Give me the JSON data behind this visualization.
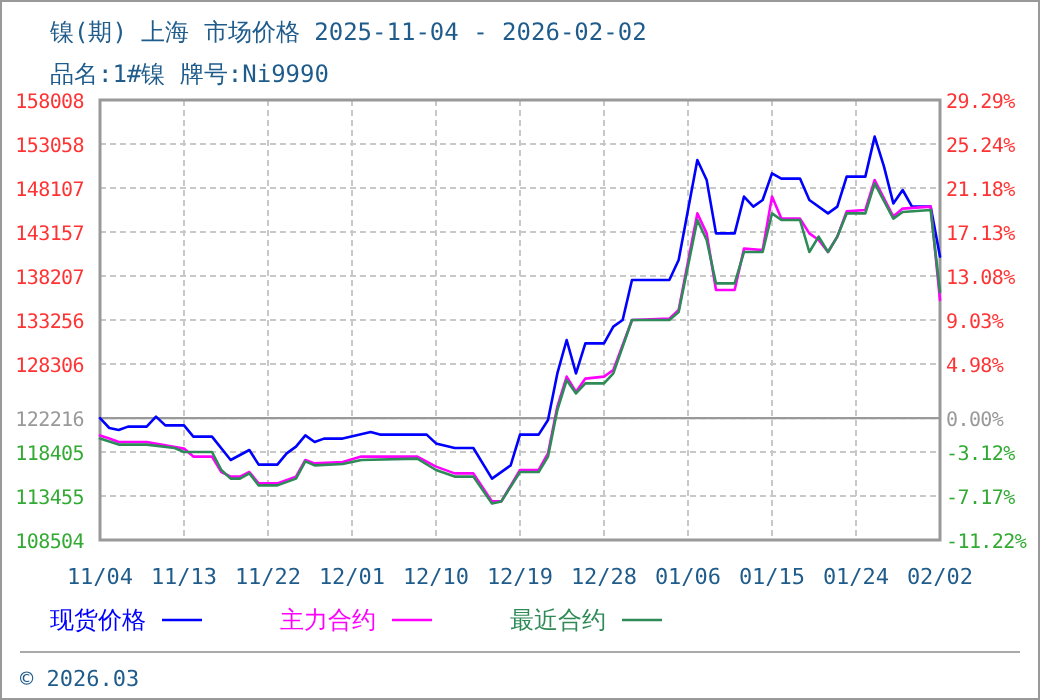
{
  "chart_data": {
    "type": "line",
    "title": "镍(期) 上海 市场价格 2025-11-04 - 2026-02-02",
    "subtitle": "品名:1#镍 牌号:Ni9990",
    "annotations": [
      "© 2026.03"
    ],
    "xlim": [
      "2025-11-04",
      "2026-02-02"
    ],
    "xticks": [
      {
        "value": "2025-11-04",
        "label": "11/04"
      },
      {
        "value": "2025-11-13",
        "label": "11/13"
      },
      {
        "value": "2025-11-22",
        "label": "11/22"
      },
      {
        "value": "2025-12-01",
        "label": "12/01"
      },
      {
        "value": "2025-12-10",
        "label": "12/10"
      },
      {
        "value": "2025-12-19",
        "label": "12/19"
      },
      {
        "value": "2025-12-28",
        "label": "12/28"
      },
      {
        "value": "2026-01-06",
        "label": "01/06"
      },
      {
        "value": "2026-01-15",
        "label": "01/15"
      },
      {
        "value": "2026-01-24",
        "label": "01/24"
      },
      {
        "value": "2026-02-02",
        "label": "02/02"
      }
    ],
    "ylim": [
      108504,
      158008
    ],
    "yticks": [
      158008,
      153058,
      148107,
      143157,
      138207,
      133256,
      128306,
      122216,
      118405,
      113455,
      108504
    ],
    "y2lim": [
      -11.22,
      29.29
    ],
    "y2ticks": [
      {
        "value": 29.29,
        "label": "29.29%"
      },
      {
        "value": 25.24,
        "label": "25.24%"
      },
      {
        "value": 21.18,
        "label": "21.18%"
      },
      {
        "value": 17.13,
        "label": "17.13%"
      },
      {
        "value": 13.08,
        "label": "13.08%"
      },
      {
        "value": 9.03,
        "label": "9.03%"
      },
      {
        "value": 4.98,
        "label": "4.98%"
      },
      {
        "value": 0,
        "label": "0.00%"
      },
      {
        "value": -3.12,
        "label": "-3.12%"
      },
      {
        "value": -7.17,
        "label": "-7.17%"
      },
      {
        "value": -11.22,
        "label": "-11.22%"
      }
    ],
    "ref_lines": [
      {
        "axis": "y",
        "value": 122216,
        "color": "#999999",
        "line_style": "solid"
      }
    ],
    "grid": true,
    "legend": "bottom",
    "marker": "none",
    "line_style": "solid",
    "series": [
      {
        "name": "现货价格",
        "color": "#0000ff",
        "x": [
          "2025-11-04",
          "2025-11-05",
          "2025-11-06",
          "2025-11-07",
          "2025-11-09",
          "2025-11-10",
          "2025-11-11",
          "2025-11-13",
          "2025-11-14",
          "2025-11-16",
          "2025-11-18",
          "2025-11-20",
          "2025-11-21",
          "2025-11-23",
          "2025-11-24",
          "2025-11-25",
          "2025-11-26",
          "2025-11-27",
          "2025-11-28",
          "2025-11-30",
          "2025-12-03",
          "2025-12-04",
          "2025-12-09",
          "2025-12-10",
          "2025-12-12",
          "2025-12-14",
          "2025-12-16",
          "2025-12-18",
          "2025-12-19",
          "2025-12-21",
          "2025-12-22",
          "2025-12-23",
          "2025-12-24",
          "2025-12-25",
          "2025-12-26",
          "2025-12-28",
          "2025-12-29",
          "2025-12-30",
          "2025-12-31",
          "2026-01-04",
          "2026-01-05",
          "2026-01-07",
          "2026-01-08",
          "2026-01-09",
          "2026-01-11",
          "2026-01-12",
          "2026-01-13",
          "2026-01-14",
          "2026-01-15",
          "2026-01-16",
          "2026-01-18",
          "2026-01-19",
          "2026-01-21",
          "2026-01-22",
          "2026-01-23",
          "2026-01-25",
          "2026-01-26",
          "2026-01-27",
          "2026-01-28",
          "2026-01-29",
          "2026-01-30",
          "2026-02-01",
          "2026-02-02"
        ],
        "values": [
          122216,
          121105,
          120880,
          121262,
          121262,
          122387,
          121397,
          121397,
          120137,
          120137,
          117504,
          118629,
          116987,
          116987,
          118247,
          119012,
          120272,
          119530,
          119912,
          119912,
          120655,
          120362,
          120362,
          119372,
          118855,
          118855,
          115412,
          116897,
          120362,
          120362,
          122005,
          127248,
          131006,
          127248,
          130623,
          130623,
          132513,
          133256,
          137756,
          137756,
          140006,
          151257,
          149007,
          142999,
          142999,
          147140,
          146014,
          146757,
          149750,
          149165,
          149165,
          146757,
          145249,
          146014,
          149390,
          149390,
          153890,
          150515,
          146375,
          147882,
          146014,
          146014,
          140389
        ]
      },
      {
        "name": "主力合约",
        "color": "#ff00ff",
        "x": [
          "2025-11-04",
          "2025-11-05",
          "2025-11-06",
          "2025-11-09",
          "2025-11-11",
          "2025-11-13",
          "2025-11-14",
          "2025-11-16",
          "2025-11-17",
          "2025-11-18",
          "2025-11-19",
          "2025-11-20",
          "2025-11-21",
          "2025-11-23",
          "2025-11-25",
          "2025-11-26",
          "2025-11-27",
          "2025-11-30",
          "2025-12-02",
          "2025-12-08",
          "2025-12-10",
          "2025-12-12",
          "2025-12-14",
          "2025-12-16",
          "2025-12-17",
          "2025-12-19",
          "2025-12-21",
          "2025-12-22",
          "2025-12-23",
          "2025-12-24",
          "2025-12-25",
          "2025-12-26",
          "2025-12-28",
          "2025-12-29",
          "2025-12-31",
          "2026-01-04",
          "2026-01-05",
          "2026-01-07",
          "2026-01-08",
          "2026-01-09",
          "2026-01-11",
          "2026-01-12",
          "2026-01-14",
          "2026-01-15",
          "2026-01-16",
          "2026-01-18",
          "2026-01-19",
          "2026-01-20",
          "2026-01-21",
          "2026-01-22",
          "2026-01-23",
          "2026-01-25",
          "2026-01-26",
          "2026-01-28",
          "2026-01-29",
          "2026-02-01",
          "2026-02-02"
        ],
        "values": [
          120272,
          119912,
          119530,
          119530,
          119147,
          118787,
          117887,
          117887,
          116154,
          115637,
          115637,
          116154,
          114872,
          114872,
          115637,
          117504,
          117122,
          117279,
          117887,
          117887,
          116762,
          115997,
          115997,
          112846,
          112846,
          116379,
          116379,
          118247,
          123512,
          126888,
          125155,
          126663,
          126888,
          127630,
          133256,
          133413,
          134381,
          145249,
          142999,
          136631,
          136631,
          141289,
          141131,
          147140,
          144664,
          144664,
          142999,
          142257,
          140906,
          142639,
          145474,
          145632,
          149007,
          144889,
          145789,
          146014,
          135506
        ]
      },
      {
        "name": "最近合约",
        "color": "#2e8b57",
        "x": [
          "2025-11-04",
          "2025-11-06",
          "2025-11-09",
          "2025-11-12",
          "2025-11-13",
          "2025-11-16",
          "2025-11-17",
          "2025-11-18",
          "2025-11-19",
          "2025-11-20",
          "2025-11-21",
          "2025-11-23",
          "2025-11-25",
          "2025-11-26",
          "2025-11-27",
          "2025-11-30",
          "2025-12-02",
          "2025-12-08",
          "2025-12-10",
          "2025-12-12",
          "2025-12-14",
          "2025-12-16",
          "2025-12-17",
          "2025-12-19",
          "2025-12-21",
          "2025-12-22",
          "2025-12-23",
          "2025-12-24",
          "2025-12-25",
          "2025-12-26",
          "2025-12-28",
          "2025-12-29",
          "2025-12-31",
          "2026-01-04",
          "2026-01-05",
          "2026-01-07",
          "2026-01-08",
          "2026-01-09",
          "2026-01-11",
          "2026-01-12",
          "2026-01-14",
          "2026-01-15",
          "2026-01-16",
          "2026-01-18",
          "2026-01-19",
          "2026-01-20",
          "2026-01-21",
          "2026-01-22",
          "2026-01-23",
          "2026-01-25",
          "2026-01-26",
          "2026-01-28",
          "2026-01-29",
          "2026-02-01",
          "2026-02-02"
        ],
        "values": [
          119912,
          119237,
          119237,
          118855,
          118405,
          118405,
          116379,
          115412,
          115412,
          115997,
          114647,
          114647,
          115412,
          117347,
          116897,
          117054,
          117504,
          117662,
          116379,
          115637,
          115637,
          112621,
          112846,
          116154,
          116154,
          117887,
          123130,
          126505,
          124998,
          126123,
          126123,
          127248,
          133256,
          133256,
          134156,
          144507,
          142257,
          137374,
          137374,
          140906,
          140906,
          145249,
          144507,
          144507,
          140906,
          142639,
          140906,
          142639,
          145249,
          145249,
          148625,
          144664,
          145407,
          145632,
          136406
        ]
      }
    ]
  }
}
